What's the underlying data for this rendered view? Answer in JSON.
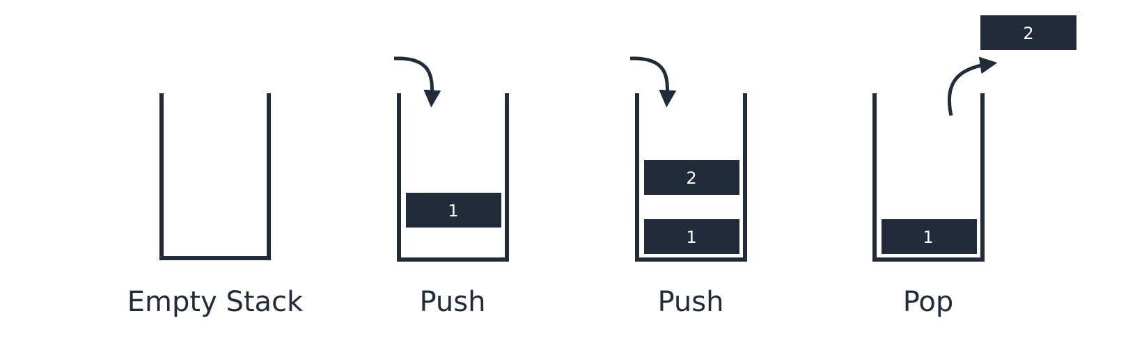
{
  "colors": {
    "ink": "#222b3a",
    "item_text": "#ffffff",
    "background": "#ffffff"
  },
  "stages": [
    {
      "caption": "Empty Stack",
      "items": [],
      "action": "none"
    },
    {
      "caption": "Push",
      "items": [
        "1"
      ],
      "action": "push"
    },
    {
      "caption": "Push",
      "items": [
        "1",
        "2"
      ],
      "action": "push"
    },
    {
      "caption": "Pop",
      "items": [
        "1"
      ],
      "action": "pop",
      "popped": "2"
    }
  ]
}
